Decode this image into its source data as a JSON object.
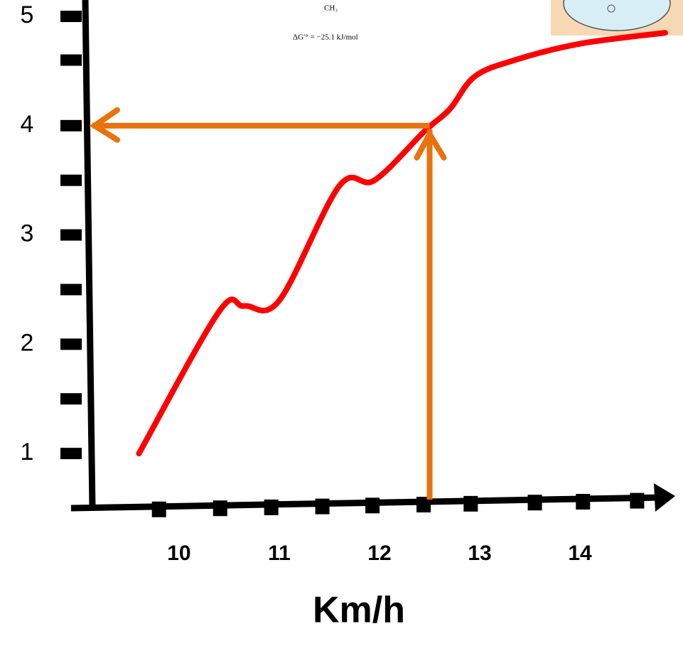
{
  "chart_data": {
    "type": "line",
    "notes": [
      "CH₃",
      "ΔG′° = −25.1 kJ/mol"
    ],
    "x_label": "Km/h",
    "x": [
      9.6,
      10.4,
      10.65,
      11.0,
      11.6,
      11.95,
      12.45,
      12.7,
      12.95,
      13.35,
      14.0,
      14.85
    ],
    "series": [
      {
        "color": "#ff0000",
        "values": [
          1.0,
          2.3,
          2.35,
          2.4,
          3.45,
          3.5,
          3.95,
          4.15,
          4.45,
          4.6,
          4.75,
          4.85
        ]
      }
    ],
    "xlim": [
      9.1,
      14.95
    ],
    "ylim": [
      0.5,
      5.15
    ],
    "xticks": [
      10,
      11,
      12,
      13,
      14
    ],
    "yticks": [
      1,
      2,
      3,
      4,
      5
    ],
    "xtickmarks": [
      9.8,
      10.41,
      10.92,
      11.43,
      11.93,
      12.44,
      12.91,
      13.55,
      14.03,
      14.57
    ],
    "ytickmarks": [
      1,
      1.5,
      2,
      2.5,
      3,
      3.5,
      4,
      4.6,
      5
    ],
    "guide": {
      "x": 12.5,
      "y": 4,
      "color": "#e8720c"
    },
    "axis_color": "#000000"
  }
}
